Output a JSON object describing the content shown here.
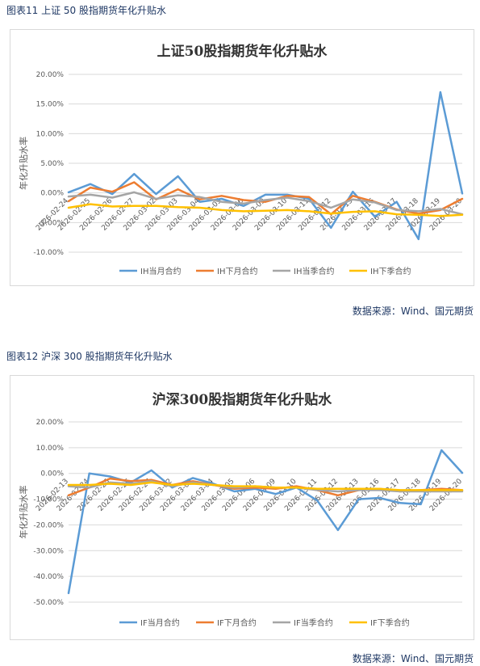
{
  "charts": [
    {
      "caption": "图表11 上证 50 股指期货年化升贴水",
      "source": "数据来源：Wind、国元期货"
    },
    {
      "caption": "图表12 沪深 300 股指期货年化升贴水",
      "source": "数据来源：Wind、国元期货"
    }
  ],
  "chart_data": [
    {
      "type": "line",
      "title": "上证50股指期货年化升贴水",
      "ylabel": "年化升贴水率",
      "xlabel": "",
      "ylim": [
        -10,
        20
      ],
      "yticks": [
        -10,
        -5,
        0,
        5,
        10,
        15,
        20
      ],
      "ytick_labels": [
        "-10.00%",
        "-5.00%",
        "0.00%",
        "5.00%",
        "10.00%",
        "15.00%",
        "20.00%"
      ],
      "x": [
        "2026-02-24",
        "2026-02-25",
        "2026-02-26",
        "2026-02-27",
        "2026-03-02",
        "2026-03-03",
        "2026-03-04",
        "2026-03-05",
        "2026-03-06",
        "2026-03-09",
        "2026-03-10",
        "2026-03-11",
        "2026-03-12",
        "2026-03-13",
        "2026-03-16",
        "2026-03-17",
        "2026-03-18",
        "2026-03-19",
        "2026-03-20"
      ],
      "grid": true,
      "legend": "bottom",
      "series": [
        {
          "name": "IH当月合约",
          "color": "#5b9bd5",
          "values": [
            0.1,
            1.5,
            -0.2,
            3.2,
            -0.2,
            2.8,
            -1.5,
            -1.0,
            -2.2,
            -0.3,
            -0.3,
            -1.0,
            -5.9,
            0.2,
            -4.0,
            -1.5,
            -7.8,
            17.0,
            -0.1
          ]
        },
        {
          "name": "IH下月合约",
          "color": "#ed7d31",
          "values": [
            -1.4,
            0.9,
            0.2,
            1.8,
            -1.1,
            0.6,
            -1.1,
            -0.5,
            -1.2,
            -1.5,
            -0.5,
            -0.7,
            -3.6,
            -0.5,
            -1.5,
            -2.8,
            -3.5,
            -2.9,
            -1.0
          ]
        },
        {
          "name": "IH当季合约",
          "color": "#a5a5a5",
          "values": [
            -0.6,
            -0.3,
            -0.8,
            0.1,
            -1.0,
            -0.4,
            -0.7,
            -1.5,
            -1.8,
            -1.2,
            -0.8,
            -1.4,
            -2.5,
            -1.1,
            -1.6,
            -2.9,
            -3.1,
            -2.7,
            -3.6
          ]
        },
        {
          "name": "IH下季合约",
          "color": "#ffc000",
          "values": [
            -2.5,
            -1.9,
            -2.3,
            -2.2,
            -2.2,
            -2.4,
            -2.5,
            -2.9,
            -3.1,
            -3.0,
            -2.9,
            -3.1,
            -3.5,
            -3.2,
            -3.1,
            -3.6,
            -3.7,
            -3.9,
            -3.7
          ]
        }
      ]
    },
    {
      "type": "line",
      "title": "沪深300股指期货年化升贴水",
      "ylabel": "年化升贴水率",
      "xlabel": "",
      "ylim": [
        -50,
        20
      ],
      "yticks": [
        -50,
        -40,
        -30,
        -20,
        -10,
        0,
        10,
        20
      ],
      "ytick_labels": [
        "-50.00%",
        "-40.00%",
        "-30.00%",
        "-20.00%",
        "-10.00%",
        "0.00%",
        "10.00%",
        "20.00%"
      ],
      "x": [
        "2026-02-13",
        "2026-02-24",
        "2026-02-25",
        "2026-02-26",
        "2026-02-27",
        "2026-03-02",
        "2026-03-03",
        "2026-03-04",
        "2026-03-05",
        "2026-03-06",
        "2026-03-09",
        "2026-03-10",
        "2026-03-11",
        "2026-03-12",
        "2026-03-13",
        "2026-03-16",
        "2026-03-17",
        "2026-03-18",
        "2026-03-19",
        "2026-03-20"
      ],
      "grid": true,
      "legend": "bottom",
      "series": [
        {
          "name": "IF当月合约",
          "color": "#5b9bd5",
          "values": [
            -46.5,
            0.0,
            -1.2,
            -3.5,
            1.2,
            -5.5,
            -1.8,
            -4.0,
            -7.0,
            -6.0,
            -8.0,
            -5.5,
            -10.5,
            -22.0,
            -10.0,
            -9.5,
            -11.5,
            -12.0,
            9.0,
            0.2
          ]
        },
        {
          "name": "IF下月合约",
          "color": "#ed7d31",
          "values": [
            -8.5,
            -5.5,
            -2.0,
            -3.0,
            -2.5,
            -4.5,
            -3.0,
            -4.5,
            -6.0,
            -5.5,
            -6.0,
            -5.0,
            -6.5,
            -8.5,
            -6.5,
            -6.0,
            -7.0,
            -6.5,
            -6.0,
            -6.5
          ]
        },
        {
          "name": "IF当季合约",
          "color": "#a5a5a5",
          "values": [
            -5.0,
            -5.5,
            -3.5,
            -4.0,
            -3.0,
            -5.0,
            -3.5,
            -4.5,
            -5.5,
            -5.0,
            -5.5,
            -5.5,
            -6.5,
            -7.0,
            -6.5,
            -6.5,
            -7.0,
            -7.0,
            -7.0,
            -7.0
          ]
        },
        {
          "name": "IF下季合约",
          "color": "#ffc000",
          "values": [
            -4.5,
            -4.5,
            -4.0,
            -4.5,
            -3.5,
            -4.5,
            -4.0,
            -4.5,
            -5.0,
            -5.0,
            -5.5,
            -5.5,
            -6.0,
            -6.0,
            -6.0,
            -6.0,
            -6.5,
            -6.5,
            -6.5,
            -6.5
          ]
        }
      ]
    }
  ]
}
